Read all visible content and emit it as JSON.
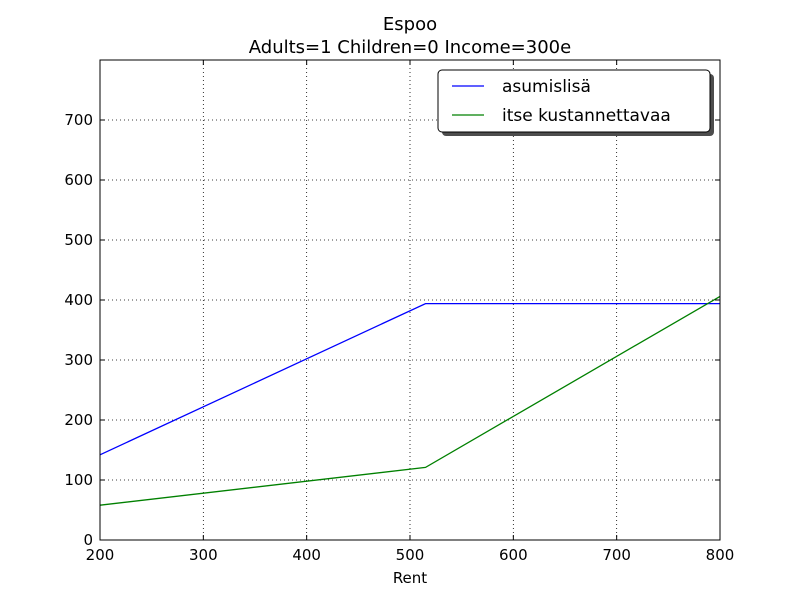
{
  "chart_data": {
    "type": "line",
    "title": "Espoo",
    "subtitle": "Adults=1 Children=0 Income=300e",
    "xlabel": "Rent",
    "ylabel": "",
    "xlim": [
      200,
      800
    ],
    "ylim": [
      0,
      800
    ],
    "x_ticks": [
      200,
      300,
      400,
      500,
      600,
      700,
      800
    ],
    "y_ticks": [
      0,
      100,
      200,
      300,
      400,
      500,
      600,
      700
    ],
    "grid": true,
    "grid_style": "dotted",
    "legend_position": "top-right",
    "series": [
      {
        "name": "asumislisä",
        "color": "#0000ff",
        "x": [
          200,
          515,
          800
        ],
        "y": [
          142,
          394,
          394
        ]
      },
      {
        "name": "itse kustannettavaa",
        "color": "#008000",
        "x": [
          200,
          515,
          800
        ],
        "y": [
          58,
          121,
          406
        ]
      }
    ]
  }
}
